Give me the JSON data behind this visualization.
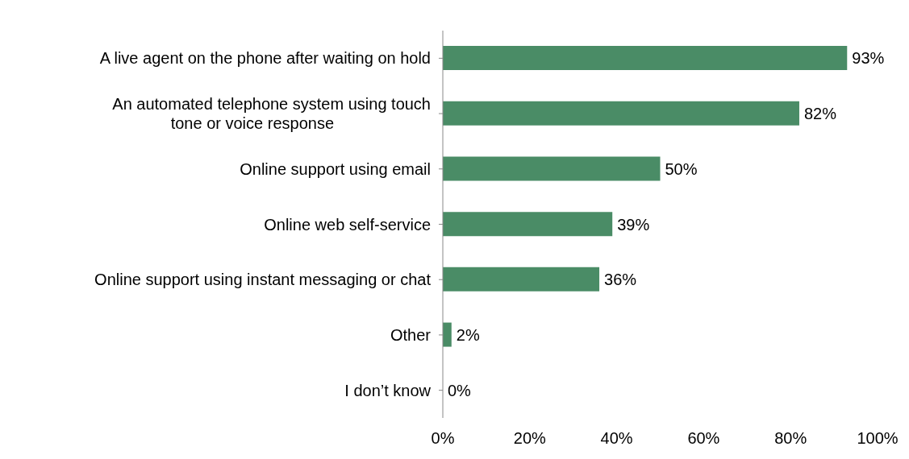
{
  "chart_data": {
    "type": "bar",
    "orientation": "horizontal",
    "categories": [
      "A live agent on the phone after waiting on hold",
      "An automated telephone system using touch\ntone or voice response",
      "Online support using email",
      "Online web self-service",
      "Online support using instant messaging or chat",
      "Other",
      "I don’t know"
    ],
    "values": [
      93,
      82,
      50,
      39,
      36,
      2,
      0
    ],
    "value_labels": [
      "93%",
      "82%",
      "50%",
      "39%",
      "36%",
      "2%",
      "0%"
    ],
    "color": "#4a8c66",
    "xlim": [
      0,
      100
    ],
    "xticks": [
      {
        "value": 0,
        "label": "0%"
      },
      {
        "value": 20,
        "label": "20%"
      },
      {
        "value": 40,
        "label": "40%"
      },
      {
        "value": 60,
        "label": "60%"
      },
      {
        "value": 80,
        "label": "80%"
      },
      {
        "value": 100,
        "label": "100%"
      }
    ],
    "grid": false,
    "legend": false
  }
}
